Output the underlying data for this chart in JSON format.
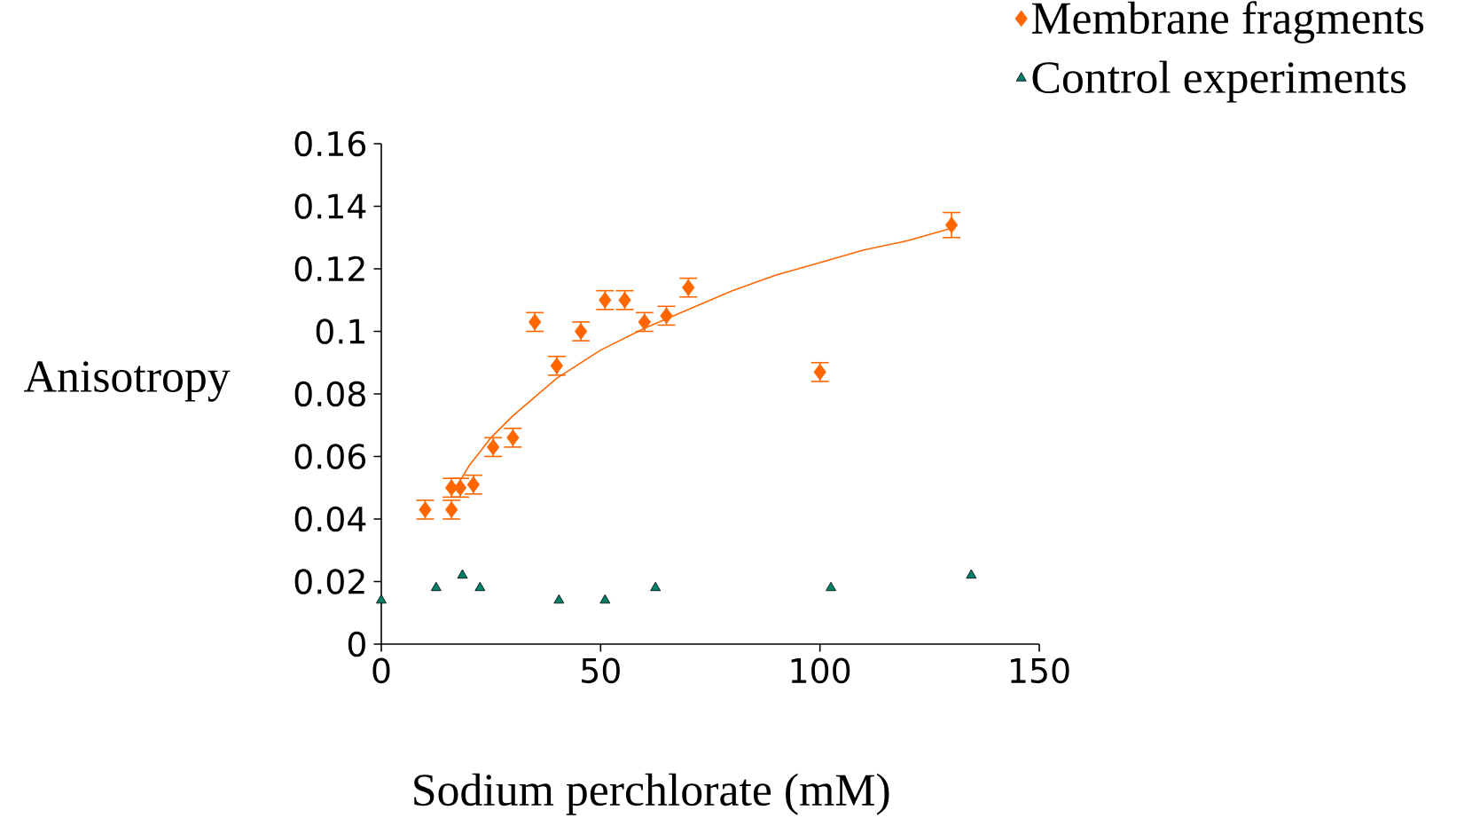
{
  "chart_data": {
    "type": "scatter",
    "xlabel": "Sodium perchlorate (mM)",
    "ylabel": "Anisotropy",
    "xlim": [
      0,
      150
    ],
    "xticks": [
      0,
      50,
      100,
      150
    ],
    "ylim": [
      0,
      0.16
    ],
    "yticks": [
      0,
      0.02,
      0.04,
      0.06,
      0.08,
      0.1,
      0.12,
      0.14,
      0.16
    ],
    "grid": false,
    "legend": "top right",
    "series": [
      {
        "name": "Membrane fragments",
        "color": "#ff6600",
        "marker": "diamond",
        "x": [
          10,
          16,
          16,
          18,
          21,
          25.5,
          30,
          35,
          40,
          45.5,
          51,
          55.5,
          60,
          65,
          70,
          100,
          130
        ],
        "values": [
          0.043,
          0.043,
          0.05,
          0.05,
          0.051,
          0.063,
          0.066,
          0.103,
          0.089,
          0.1,
          0.11,
          0.11,
          0.103,
          0.105,
          0.114,
          0.087,
          0.134
        ],
        "errors": [
          0.003,
          0.003,
          0.003,
          0.003,
          0.003,
          0.003,
          0.003,
          0.003,
          0.003,
          0.003,
          0.003,
          0.003,
          0.003,
          0.003,
          0.003,
          0.003,
          0.004
        ]
      },
      {
        "type": "line",
        "color": "#ff6600",
        "marker": "none",
        "x": [
          17,
          20,
          25,
          30,
          40,
          50,
          60,
          70,
          80,
          90,
          100,
          110,
          120,
          130
        ],
        "values": [
          0.05,
          0.057,
          0.066,
          0.073,
          0.085,
          0.094,
          0.101,
          0.107,
          0.113,
          0.118,
          0.122,
          0.126,
          0.129,
          0.133
        ]
      },
      {
        "name": "Control experiments",
        "color": "#008066",
        "marker": "triangle",
        "x": [
          0,
          12.5,
          18.5,
          22.5,
          40.5,
          51,
          62.5,
          102.5,
          134.5
        ],
        "values": [
          0.014,
          0.018,
          0.022,
          0.018,
          0.014,
          0.014,
          0.018,
          0.018,
          0.022
        ]
      }
    ]
  }
}
